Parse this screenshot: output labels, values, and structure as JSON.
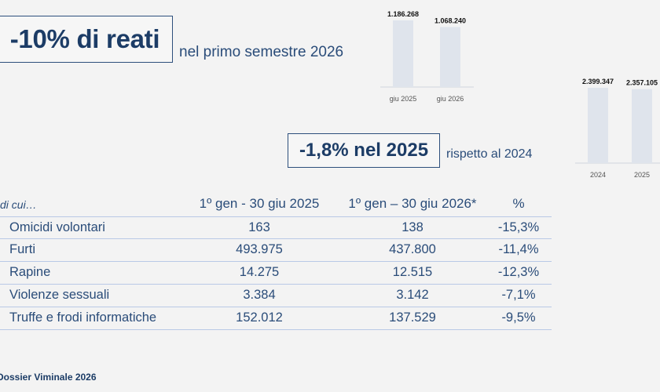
{
  "headline": {
    "big": "-10% di reati",
    "sub": "nel primo semestre 2026"
  },
  "secondary": {
    "big": "-1,8% nel 2025",
    "sub": "rispetto al 2024"
  },
  "chart_data": [
    {
      "type": "bar",
      "categories": [
        "giu 2025",
        "giu 2026"
      ],
      "values": [
        1186268,
        1068240
      ],
      "value_labels": [
        "1.186.268",
        "1.068.240"
      ],
      "ylim": [
        0,
        1186268
      ]
    },
    {
      "type": "bar",
      "categories": [
        "2024",
        "2025"
      ],
      "values": [
        2399347,
        2357105
      ],
      "value_labels": [
        "2.399.347",
        "2.357.105"
      ],
      "ylim": [
        0,
        2399347
      ]
    }
  ],
  "table": {
    "lead": "di cui…",
    "headers": [
      "1º gen - 30 giu 2025",
      "1º gen – 30 giu 2026*",
      "%"
    ],
    "rows": [
      {
        "name": "Omicidi volontari",
        "v2025": "163",
        "v2026": "138",
        "pct": "-15,3%"
      },
      {
        "name": "Furti",
        "v2025": "493.975",
        "v2026": "437.800",
        "pct": "-11,4%"
      },
      {
        "name": "Rapine",
        "v2025": "14.275",
        "v2026": "12.515",
        "pct": "-12,3%"
      },
      {
        "name": "Violenze sessuali",
        "v2025": "3.384",
        "v2026": "3.142",
        "pct": "-7,1%"
      },
      {
        "name": "Truffe e frodi informatiche",
        "v2025": "152.012",
        "v2026": "137.529",
        "pct": "-9,5%"
      }
    ]
  },
  "footer": "Dossier Viminale 2026",
  "colors": {
    "accent": "#1c3c66",
    "bar": "#dfe4ec",
    "rule": "#b9c9e6"
  }
}
